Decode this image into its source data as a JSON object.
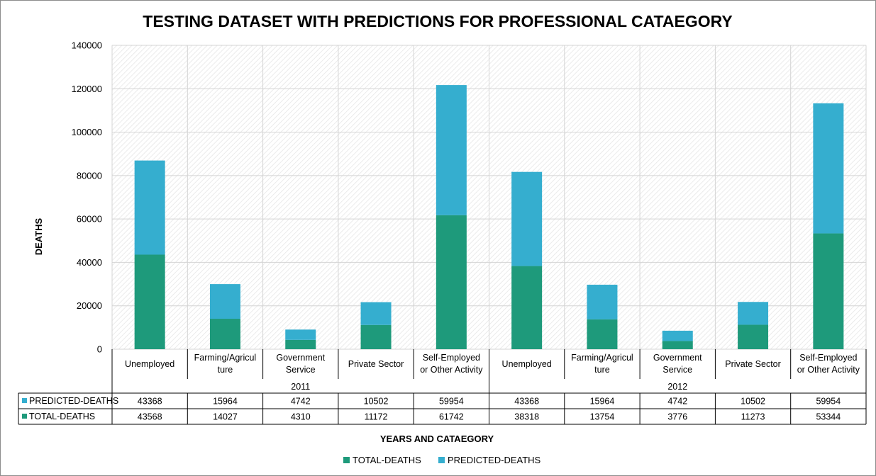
{
  "chart_data": {
    "type": "bar",
    "stacked": true,
    "title": "TESTING DATASET WITH PREDICTIONS FOR PROFESSIONAL CATAEGORY",
    "xlabel": "YEARS AND CATAEGORY",
    "ylabel": "DEATHS",
    "ylim": [
      0,
      140000
    ],
    "yticks": [
      "0",
      "20000",
      "40000",
      "60000",
      "80000",
      "100000",
      "120000",
      "140000"
    ],
    "groups": [
      {
        "label": "2011",
        "categories": [
          [
            "Unemployed"
          ],
          [
            "Farming/Agricul",
            "ture"
          ],
          [
            "Government",
            "Service"
          ],
          [
            "Private Sector"
          ],
          [
            "Self-Employed",
            "or Other Activity"
          ]
        ]
      },
      {
        "label": "2012",
        "categories": [
          [
            "Unemployed"
          ],
          [
            "Farming/Agricul",
            "ture"
          ],
          [
            "Government",
            "Service"
          ],
          [
            "Private Sector"
          ],
          [
            "Self-Employed",
            "or Other Activity"
          ]
        ]
      }
    ],
    "series": [
      {
        "name": "PREDICTED-DEATHS",
        "color": "#35aecf",
        "values": [
          43368,
          15964,
          4742,
          10502,
          59954,
          43368,
          15964,
          4742,
          10502,
          59954
        ]
      },
      {
        "name": "TOTAL-DEATHS",
        "color": "#1e9a7b",
        "values": [
          43568,
          14027,
          4310,
          11172,
          61742,
          38318,
          13754,
          3776,
          11273,
          53344
        ]
      }
    ],
    "stack_order": [
      "TOTAL-DEATHS",
      "PREDICTED-DEATHS"
    ],
    "legend": {
      "position": "bottom",
      "items": [
        "TOTAL-DEATHS",
        "PREDICTED-DEATHS"
      ]
    },
    "grid": true,
    "data_table": true
  }
}
